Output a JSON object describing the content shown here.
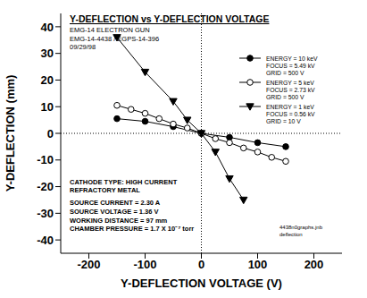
{
  "chart_data": {
    "type": "scatter",
    "title": "Y-DEFLECTION vs Y-DEFLECTION VOLTAGE",
    "subtitle": [
      "EMG-14 ELECTRON GUN",
      "EMG-14-4438 / EGPS-14-396",
      "09/29/98"
    ],
    "x_label": "Y-DEFLECTION VOLTAGE (V)",
    "y_label": "Y-DEFLECTION (mm)",
    "xlim": [
      -250,
      250
    ],
    "xticks": [
      -200,
      -100,
      0,
      100,
      200
    ],
    "ylim": [
      -45,
      45
    ],
    "yticks": [
      -40,
      -30,
      -20,
      -10,
      0,
      10,
      20,
      30,
      40
    ],
    "grid": false,
    "legend": "upper right",
    "notes": [
      "CATHODE TYPE: HIGH CURRENT",
      "REFRACTORY METAL",
      "SOURCE CURRENT = 2.30 A",
      "SOURCE VOLTAGE = 1.36 V",
      "WORKING DISTANCE = 97 mm",
      "CHAMBER PRESSURE = 1.7 X 10⁻⁷ torr"
    ],
    "file_notes": [
      "4438n0graphs.jnb",
      "deflection"
    ],
    "series": [
      {
        "name": "ENERGY = 10 keV",
        "details": [
          "FOCUS = 5.49 kV",
          "GRID = 500 V"
        ],
        "color": "#000000",
        "marker": "circle",
        "line_style": "solid",
        "x": [
          -150,
          -100,
          -50,
          0,
          50,
          100,
          150
        ],
        "values": [
          5.5,
          4.5,
          2.5,
          0,
          -1.5,
          -3.5,
          -5
        ]
      },
      {
        "name": "ENERGY = 5 keV",
        "details": [
          "FOCUS = 2.73 kV",
          "GRID = 500 V"
        ],
        "color": "#000000",
        "marker": "circle_open",
        "line_style": "solid",
        "x": [
          -150,
          -125,
          -100,
          -75,
          -50,
          -25,
          0,
          25,
          50,
          75,
          100,
          125,
          150
        ],
        "values": [
          10.5,
          9,
          7.5,
          5.5,
          3.5,
          2,
          0,
          -2,
          -3.5,
          -5.5,
          -7,
          -9,
          -10.5
        ]
      },
      {
        "name": "ENERGY = 1 keV",
        "details": [
          "FOCUS = 0.56 kV",
          "GRID = 10 V"
        ],
        "color": "#000000",
        "marker": "triangle_down",
        "line_style": "solid",
        "x": [
          -150,
          -100,
          -50,
          -25,
          0,
          25,
          50,
          75
        ],
        "values": [
          36,
          23,
          12,
          5,
          0,
          -7,
          -17,
          -25
        ]
      }
    ]
  }
}
